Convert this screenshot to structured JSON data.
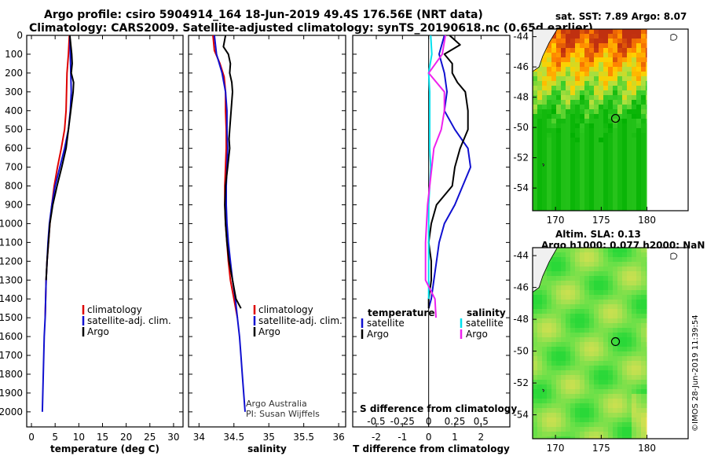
{
  "header": {
    "line1": "Argo profile: csiro 5904914_164 18-Jun-2019 49.4S 176.56E (NRT data)",
    "line2": "Climatology: CARS2009. Satellite-adjusted climatology: synTS_20190618.nc (0.65d earlier)"
  },
  "credit": {
    "line1": "Argo Australia",
    "line2": "PI: Susan Wijffels"
  },
  "stamp": "©IMOS 28-Jun-2019 11:39:54",
  "colors": {
    "argo": "#000000",
    "clim": "#dd0000",
    "sat": "#1010d0",
    "sst_sat": "#00e0ee",
    "sal_sat": "#ee22ee"
  },
  "chart_data": [
    {
      "type": "line",
      "panel": "temperature",
      "xlabel": "temperature (deg C)",
      "ylabel": "depth",
      "xlim": [
        -1,
        32
      ],
      "ylim": [
        2080,
        0
      ],
      "xticks": [
        0,
        5,
        10,
        15,
        20,
        25,
        30
      ],
      "yticks": [
        0,
        100,
        200,
        300,
        400,
        500,
        600,
        700,
        800,
        900,
        1000,
        1100,
        1200,
        1300,
        1400,
        1500,
        1600,
        1700,
        1800,
        1900,
        2000
      ],
      "legend": {
        "clim": "climatology",
        "sat": "satellite-adj. clim.",
        "argo": "Argo"
      },
      "series": [
        {
          "name": "climatology",
          "color": "clim",
          "points": [
            [
              8.0,
              0
            ],
            [
              7.8,
              100
            ],
            [
              7.5,
              200
            ],
            [
              7.4,
              300
            ],
            [
              7.3,
              400
            ],
            [
              7.0,
              500
            ],
            [
              6.3,
              600
            ],
            [
              5.5,
              700
            ],
            [
              4.8,
              800
            ],
            [
              4.3,
              900
            ],
            [
              3.9,
              1000
            ],
            [
              3.6,
              1100
            ],
            [
              3.3,
              1200
            ],
            [
              3.1,
              1300
            ],
            [
              3.0,
              1400
            ],
            [
              2.9,
              1500
            ]
          ]
        },
        {
          "name": "satellite-adj. clim.",
          "color": "sat",
          "points": [
            [
              8.1,
              0
            ],
            [
              8.2,
              100
            ],
            [
              8.3,
              200
            ],
            [
              8.4,
              300
            ],
            [
              8.2,
              400
            ],
            [
              7.8,
              500
            ],
            [
              7.0,
              600
            ],
            [
              6.0,
              700
            ],
            [
              5.0,
              800
            ],
            [
              4.3,
              900
            ],
            [
              3.8,
              1000
            ],
            [
              3.5,
              1100
            ],
            [
              3.3,
              1200
            ],
            [
              3.1,
              1300
            ],
            [
              3.0,
              1400
            ],
            [
              2.9,
              1500
            ],
            [
              2.7,
              1600
            ],
            [
              2.6,
              1700
            ],
            [
              2.5,
              1800
            ],
            [
              2.4,
              1900
            ],
            [
              2.3,
              2000
            ]
          ]
        },
        {
          "name": "Argo",
          "color": "argo",
          "points": [
            [
              8.1,
              0
            ],
            [
              8.3,
              50
            ],
            [
              8.5,
              100
            ],
            [
              8.6,
              150
            ],
            [
              8.4,
              200
            ],
            [
              8.9,
              250
            ],
            [
              8.8,
              300
            ],
            [
              8.3,
              400
            ],
            [
              7.8,
              500
            ],
            [
              7.3,
              600
            ],
            [
              6.4,
              700
            ],
            [
              5.4,
              800
            ],
            [
              4.5,
              900
            ],
            [
              3.9,
              1000
            ],
            [
              3.6,
              1100
            ],
            [
              3.3,
              1200
            ],
            [
              3.1,
              1300
            ]
          ]
        }
      ]
    },
    {
      "type": "line",
      "panel": "salinity",
      "xlabel": "salinity",
      "ylabel": "depth",
      "xlim": [
        33.85,
        36.1
      ],
      "ylim": [
        2080,
        0
      ],
      "xticks": [
        34,
        34.5,
        35,
        35.5,
        36
      ],
      "legend": {
        "clim": "climatology",
        "sat": "satellite-adj. clim.",
        "argo": "Argo"
      },
      "series": [
        {
          "name": "climatology",
          "color": "clim",
          "points": [
            [
              34.2,
              0
            ],
            [
              34.22,
              80
            ],
            [
              34.3,
              150
            ],
            [
              34.36,
              220
            ],
            [
              34.38,
              300
            ],
            [
              34.38,
              400
            ],
            [
              34.39,
              500
            ],
            [
              34.39,
              600
            ],
            [
              34.38,
              700
            ],
            [
              34.37,
              800
            ],
            [
              34.37,
              900
            ],
            [
              34.38,
              1000
            ],
            [
              34.4,
              1100
            ],
            [
              34.42,
              1200
            ],
            [
              34.45,
              1300
            ],
            [
              34.5,
              1400
            ],
            [
              34.55,
              1500
            ]
          ]
        },
        {
          "name": "satellite-adj. clim.",
          "color": "sat",
          "points": [
            [
              34.22,
              0
            ],
            [
              34.25,
              100
            ],
            [
              34.33,
              200
            ],
            [
              34.38,
              300
            ],
            [
              34.4,
              400
            ],
            [
              34.4,
              500
            ],
            [
              34.41,
              600
            ],
            [
              34.4,
              700
            ],
            [
              34.39,
              800
            ],
            [
              34.39,
              900
            ],
            [
              34.4,
              1000
            ],
            [
              34.42,
              1100
            ],
            [
              34.45,
              1200
            ],
            [
              34.48,
              1300
            ],
            [
              34.52,
              1400
            ],
            [
              34.55,
              1500
            ],
            [
              34.58,
              1600
            ],
            [
              34.6,
              1700
            ],
            [
              34.62,
              1800
            ],
            [
              34.64,
              1900
            ],
            [
              34.66,
              2000
            ]
          ]
        },
        {
          "name": "Argo",
          "color": "argo",
          "points": [
            [
              34.38,
              0
            ],
            [
              34.35,
              60
            ],
            [
              34.42,
              100
            ],
            [
              34.45,
              150
            ],
            [
              34.44,
              200
            ],
            [
              34.47,
              250
            ],
            [
              34.48,
              300
            ],
            [
              34.46,
              400
            ],
            [
              34.44,
              500
            ],
            [
              34.43,
              550
            ],
            [
              34.44,
              600
            ],
            [
              34.41,
              700
            ],
            [
              34.38,
              800
            ],
            [
              34.37,
              900
            ],
            [
              34.38,
              1000
            ],
            [
              34.4,
              1100
            ],
            [
              34.43,
              1200
            ],
            [
              34.48,
              1300
            ],
            [
              34.53,
              1400
            ],
            [
              34.6,
              1450
            ]
          ]
        }
      ]
    },
    {
      "type": "line",
      "panel": "difference",
      "xlabel": "T difference from climatology",
      "ylabel": "depth",
      "secondary_xlabel": "S difference from climatology",
      "xlim": [
        -2.9,
        3.1
      ],
      "ylim": [
        2080,
        0
      ],
      "xticks": [
        -2,
        -1,
        0,
        1,
        2
      ],
      "secondary_xticks": [
        [
          "-0.5",
          -2
        ],
        [
          "-0.25",
          -1
        ],
        [
          "0",
          0
        ],
        [
          "0.25",
          1
        ],
        [
          "0.5",
          2
        ]
      ],
      "legend": {
        "temperature": "temperature",
        "salinity": "salinity",
        "t_sat": "satellite",
        "t_argo": "Argo",
        "s_sat": "satellite",
        "s_argo": "Argo"
      },
      "series": [
        {
          "name": "T satellite",
          "color": "sat",
          "points": [
            [
              0.6,
              0
            ],
            [
              0.4,
              100
            ],
            [
              0.6,
              200
            ],
            [
              0.7,
              300
            ],
            [
              0.6,
              400
            ],
            [
              1.0,
              500
            ],
            [
              1.5,
              600
            ],
            [
              1.6,
              700
            ],
            [
              1.3,
              800
            ],
            [
              1.0,
              900
            ],
            [
              0.6,
              1000
            ],
            [
              0.4,
              1100
            ],
            [
              0.3,
              1200
            ],
            [
              0.2,
              1300
            ],
            [
              0.1,
              1400
            ],
            [
              0.0,
              1450
            ]
          ]
        },
        {
          "name": "T Argo",
          "color": "argo",
          "points": [
            [
              0.8,
              0
            ],
            [
              1.2,
              50
            ],
            [
              0.6,
              100
            ],
            [
              0.9,
              150
            ],
            [
              0.9,
              200
            ],
            [
              1.1,
              250
            ],
            [
              1.4,
              300
            ],
            [
              1.5,
              400
            ],
            [
              1.5,
              500
            ],
            [
              1.2,
              600
            ],
            [
              1.0,
              700
            ],
            [
              0.9,
              800
            ],
            [
              0.3,
              900
            ],
            [
              0.1,
              1000
            ],
            [
              0.0,
              1100
            ],
            [
              0.1,
              1200
            ],
            [
              0.1,
              1300
            ],
            [
              0.0,
              1400
            ],
            [
              0.0,
              1450
            ]
          ]
        },
        {
          "name": "S satellite",
          "color": "sst_sat",
          "points": [
            [
              0.08,
              0
            ],
            [
              0.12,
              100
            ],
            [
              0.0,
              200
            ],
            [
              0.04,
              300
            ],
            [
              0.04,
              400
            ],
            [
              0.04,
              500
            ],
            [
              0.04,
              600
            ],
            [
              0.08,
              700
            ],
            [
              0.04,
              800
            ],
            [
              0.0,
              900
            ],
            [
              0.0,
              1000
            ],
            [
              0.0,
              1100
            ],
            [
              0.0,
              1200
            ],
            [
              0.0,
              1300
            ],
            [
              0.0,
              1400
            ]
          ]
        },
        {
          "name": "S Argo",
          "color": "sal_sat",
          "points": [
            [
              0.64,
              0
            ],
            [
              0.52,
              100
            ],
            [
              0.0,
              200
            ],
            [
              0.6,
              300
            ],
            [
              0.6,
              400
            ],
            [
              0.48,
              500
            ],
            [
              0.2,
              600
            ],
            [
              0.12,
              700
            ],
            [
              0.04,
              800
            ],
            [
              -0.04,
              900
            ],
            [
              -0.08,
              1000
            ],
            [
              -0.12,
              1100
            ],
            [
              -0.12,
              1200
            ],
            [
              -0.12,
              1300
            ],
            [
              0.24,
              1400
            ],
            [
              0.28,
              1500
            ]
          ]
        }
      ]
    },
    {
      "type": "heatmap",
      "panel": "sst_map",
      "title": "sat. SST: 7.89 Argo: 8.07",
      "xticks": [
        170,
        175,
        180
      ],
      "yticks": [
        -44,
        -46,
        -48,
        -50,
        -52,
        -54
      ],
      "xlim": [
        167.5,
        184.5
      ],
      "ylim": [
        -55.5,
        -43.5
      ],
      "marker": [
        176.56,
        -49.4
      ],
      "colorscale": [
        "#00b000",
        "#3cce2a",
        "#b0e040",
        "#ffd000",
        "#ff8000",
        "#c03010"
      ]
    },
    {
      "type": "heatmap",
      "panel": "sla_map",
      "title_line1": "Altim. SLA: 0.13",
      "title_line2": "Argo h1000: 0.077 h2000: NaN",
      "xticks": [
        170,
        175,
        180
      ],
      "yticks": [
        -44,
        -46,
        -48,
        -50,
        -52,
        -54
      ],
      "xlim": [
        167.5,
        184.5
      ],
      "ylim": [
        -55.5,
        -43.5
      ],
      "marker": [
        176.56,
        -49.4
      ],
      "colorscale": [
        "#2ad838",
        "#6ae048",
        "#a8e050",
        "#e8e050",
        "#ffc040"
      ]
    }
  ]
}
